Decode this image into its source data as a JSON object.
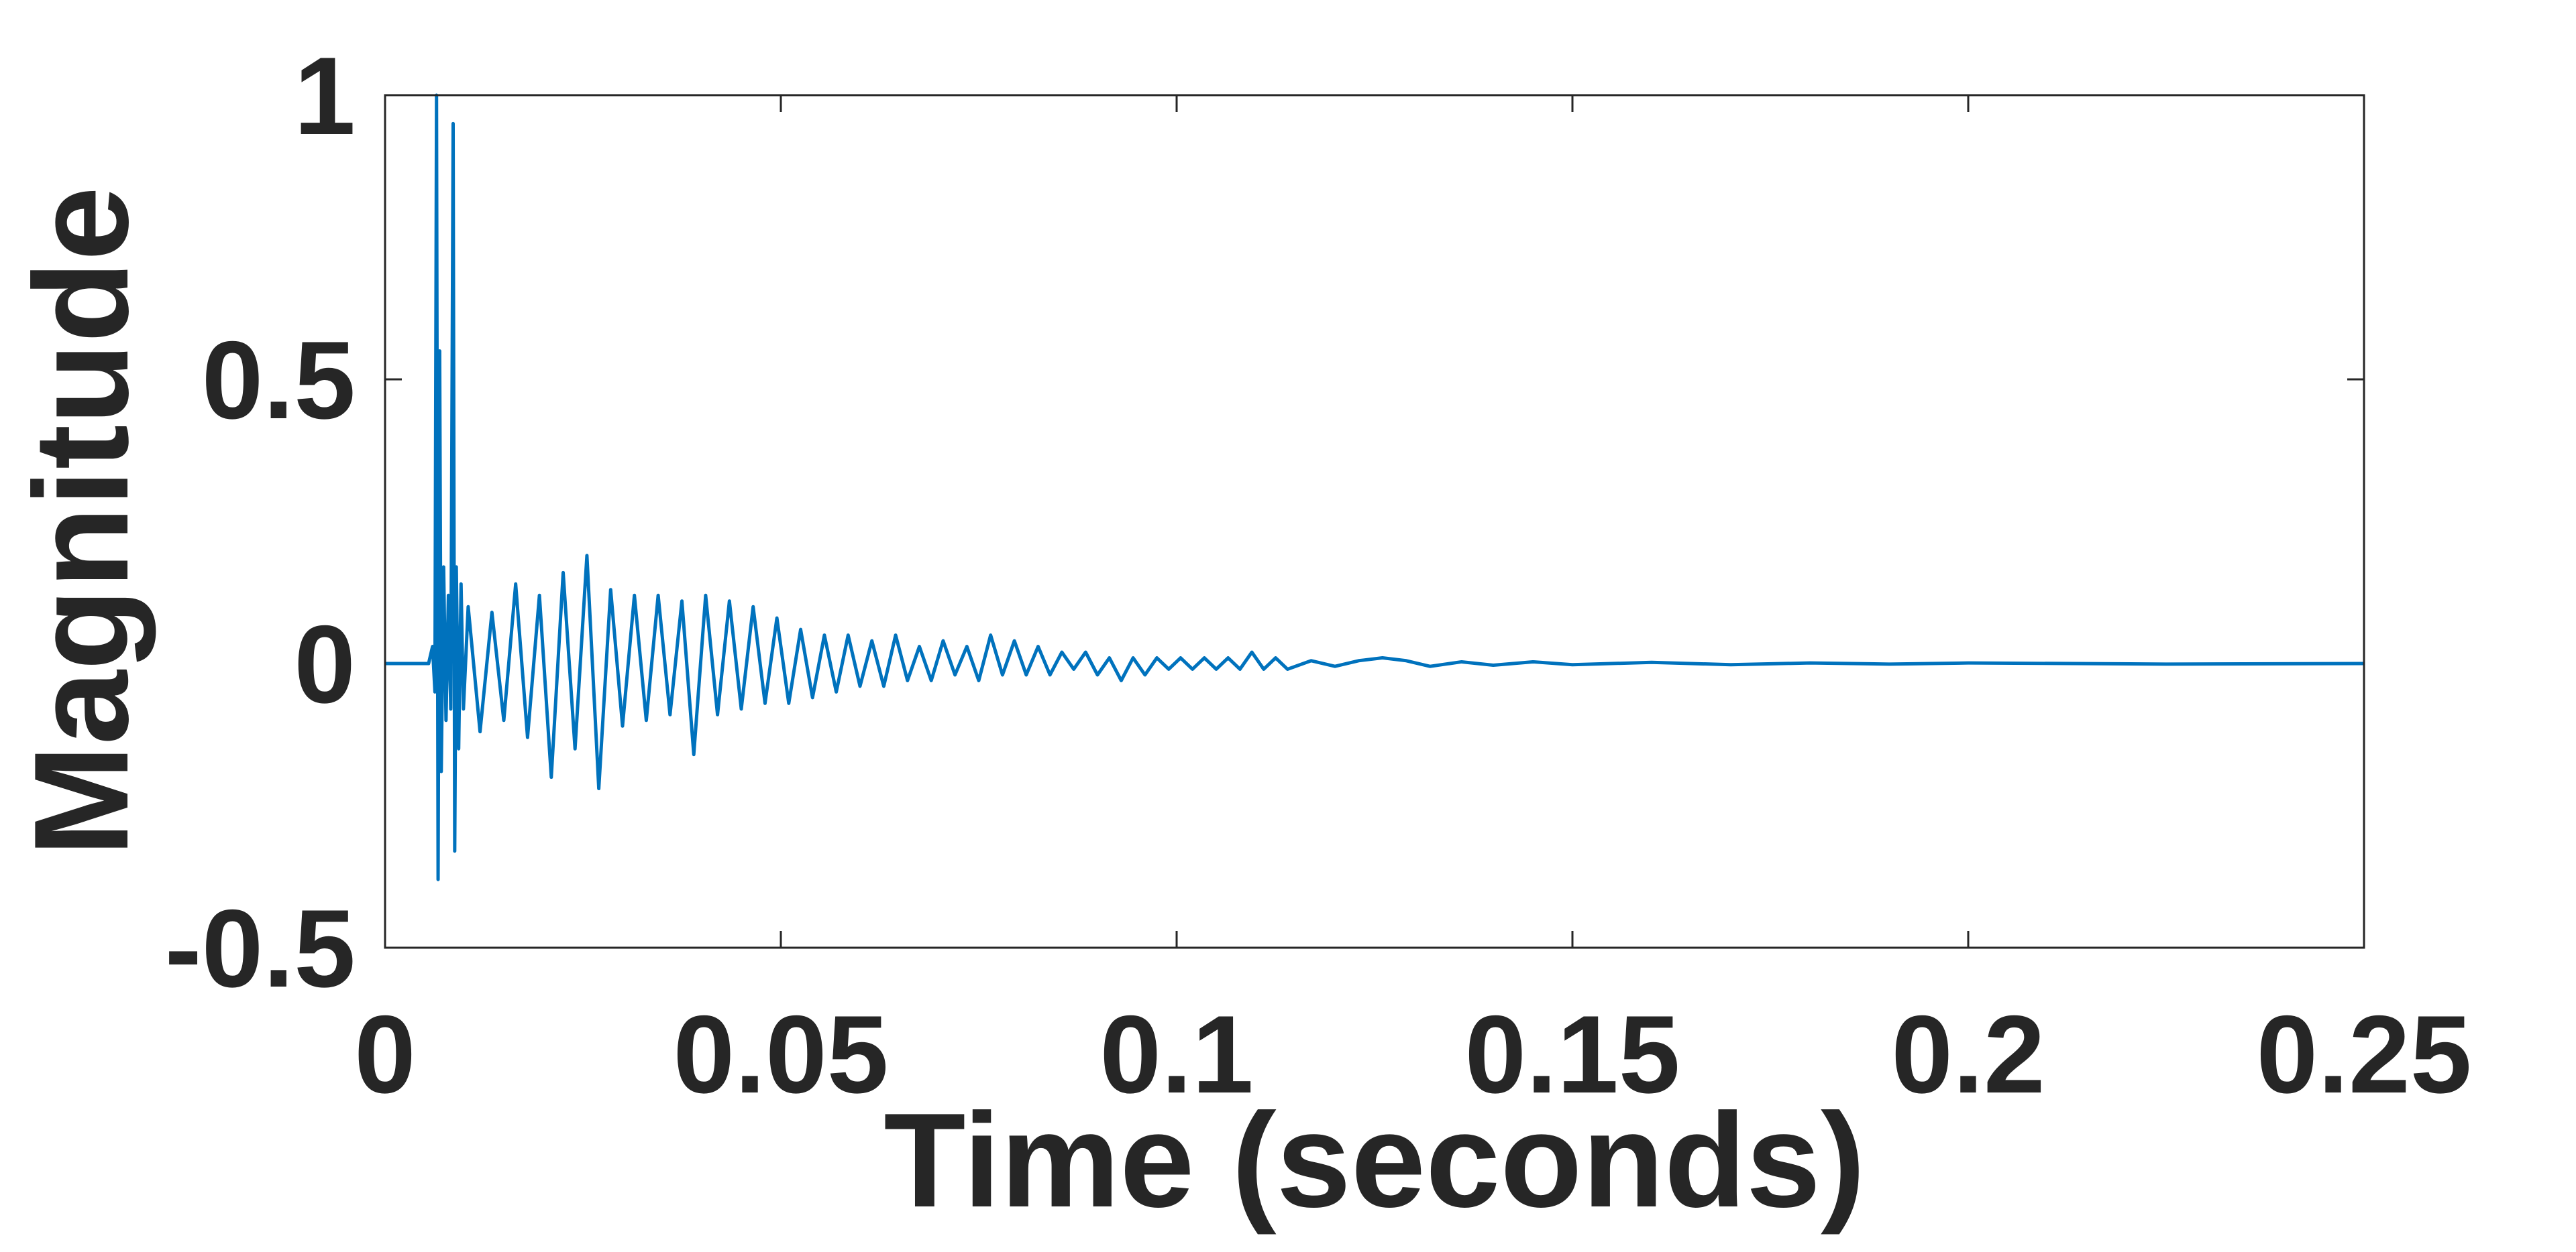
{
  "chart_data": {
    "type": "line",
    "x_label": "Time (seconds)",
    "y_label": "Magnitude",
    "xlim": [
      0,
      0.25
    ],
    "ylim": [
      -0.5,
      1
    ],
    "xticks": [
      0,
      0.05,
      0.1,
      0.15,
      0.2,
      0.25
    ],
    "yticks": [
      -0.5,
      0,
      0.5,
      1
    ],
    "grid": false,
    "series": [
      {
        "color": "#0072BD",
        "x": [
          0,
          0.0055,
          0.006,
          0.0063,
          0.0065,
          0.0067,
          0.0069,
          0.0071,
          0.0074,
          0.0077,
          0.008,
          0.0083,
          0.0086,
          0.0088,
          0.009,
          0.0093,
          0.0096,
          0.0099,
          0.0105,
          0.012,
          0.0135,
          0.015,
          0.0165,
          0.018,
          0.0195,
          0.021,
          0.0225,
          0.024,
          0.0255,
          0.027,
          0.0285,
          0.03,
          0.0315,
          0.033,
          0.0345,
          0.036,
          0.0375,
          0.039,
          0.0405,
          0.042,
          0.0435,
          0.045,
          0.0465,
          0.048,
          0.0495,
          0.051,
          0.0525,
          0.054,
          0.0555,
          0.057,
          0.0585,
          0.06,
          0.0615,
          0.063,
          0.0645,
          0.066,
          0.0675,
          0.069,
          0.0705,
          0.072,
          0.0735,
          0.075,
          0.0765,
          0.078,
          0.0795,
          0.081,
          0.0825,
          0.084,
          0.0855,
          0.087,
          0.0885,
          0.09,
          0.0915,
          0.093,
          0.0945,
          0.096,
          0.0975,
          0.099,
          0.1005,
          0.102,
          0.1035,
          0.105,
          0.1065,
          0.108,
          0.1095,
          0.111,
          0.1125,
          0.114,
          0.117,
          0.12,
          0.123,
          0.126,
          0.129,
          0.132,
          0.136,
          0.14,
          0.145,
          0.15,
          0.16,
          0.17,
          0.18,
          0.19,
          0.2,
          0.225,
          0.25
        ],
        "values": [
          0,
          0,
          0.03,
          -0.05,
          1.0,
          -0.38,
          0.55,
          -0.19,
          0.17,
          -0.1,
          0.12,
          -0.08,
          0.95,
          -0.33,
          0.17,
          -0.15,
          0.14,
          -0.08,
          0.1,
          -0.12,
          0.09,
          -0.1,
          0.14,
          -0.13,
          0.12,
          -0.2,
          0.16,
          -0.15,
          0.19,
          -0.22,
          0.13,
          -0.11,
          0.12,
          -0.1,
          0.12,
          -0.09,
          0.11,
          -0.16,
          0.12,
          -0.09,
          0.11,
          -0.08,
          0.1,
          -0.07,
          0.08,
          -0.07,
          0.06,
          -0.06,
          0.05,
          -0.05,
          0.05,
          -0.04,
          0.04,
          -0.04,
          0.05,
          -0.03,
          0.03,
          -0.03,
          0.04,
          -0.02,
          0.03,
          -0.03,
          0.05,
          -0.02,
          0.04,
          -0.02,
          0.03,
          -0.02,
          0.02,
          -0.01,
          0.02,
          -0.02,
          0.01,
          -0.03,
          0.01,
          -0.02,
          0.01,
          -0.01,
          0.01,
          -0.01,
          0.01,
          -0.01,
          0.01,
          -0.01,
          0.02,
          -0.01,
          0.01,
          -0.01,
          0.005,
          -0.005,
          0.005,
          0.01,
          0.005,
          -0.005,
          0.003,
          -0.003,
          0.003,
          -0.002,
          0.002,
          -0.002,
          0.001,
          -0.001,
          0.001,
          -0.001,
          0
        ]
      }
    ]
  }
}
